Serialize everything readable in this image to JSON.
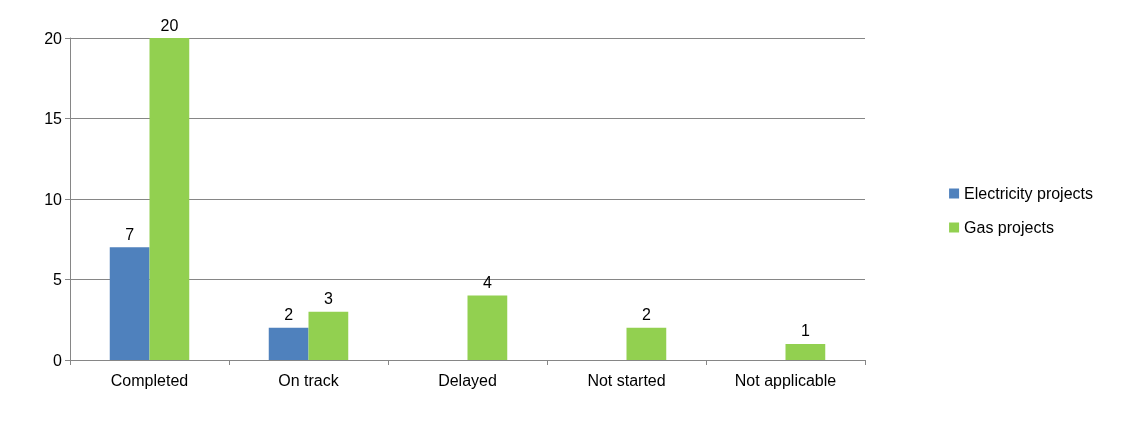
{
  "chart_data": {
    "type": "bar",
    "categories": [
      "Completed",
      "On track",
      "Delayed",
      "Not started",
      "Not applicable"
    ],
    "series": [
      {
        "name": "Electricity projects",
        "color": "#4f81bd",
        "values": [
          7,
          2,
          null,
          null,
          null
        ]
      },
      {
        "name": "Gas projects",
        "color": "#92d050",
        "values": [
          20,
          3,
          4,
          2,
          1
        ]
      }
    ],
    "ylim": [
      0,
      20
    ],
    "yticks": [
      0,
      5,
      10,
      15,
      20
    ],
    "grid": "y",
    "legend": "right",
    "data_labels": true
  }
}
